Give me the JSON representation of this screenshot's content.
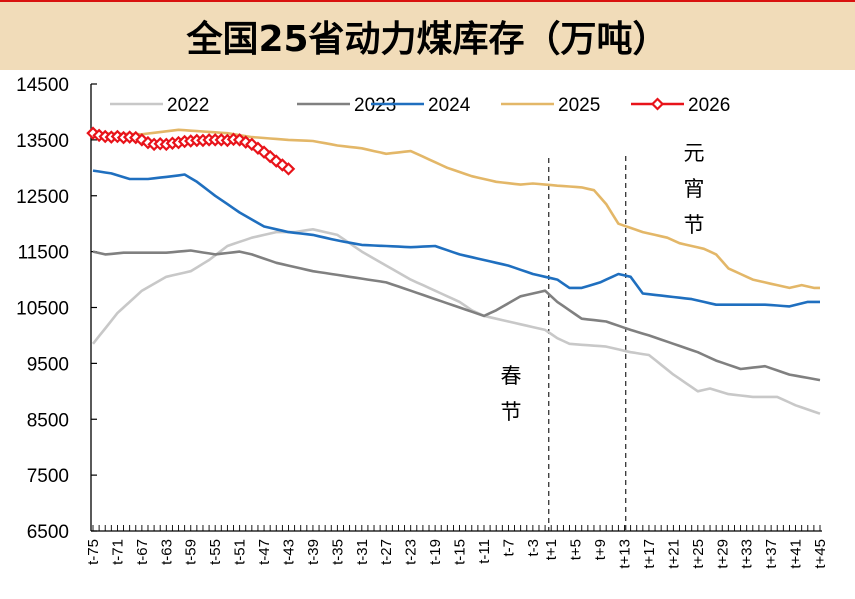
{
  "title": "全国25省动力煤库存（万吨）",
  "chart_data": {
    "type": "line",
    "title": "全国25省动力煤库存（万吨）",
    "xlabel": "",
    "ylabel": "",
    "ylim": [
      6500,
      14500
    ],
    "yticks": [
      14500,
      13500,
      12500,
      11500,
      10500,
      9500,
      8500,
      7500,
      6500
    ],
    "x": [
      "t-75",
      "t-74",
      "t-73",
      "t-72",
      "t-71",
      "t-70",
      "t-69",
      "t-68",
      "t-67",
      "t-66",
      "t-65",
      "t-64",
      "t-63",
      "t-62",
      "t-61",
      "t-60",
      "t-59",
      "t-58",
      "t-57",
      "t-56",
      "t-55",
      "t-54",
      "t-53",
      "t-52",
      "t-51",
      "t-50",
      "t-49",
      "t-48",
      "t-47",
      "t-46",
      "t-45",
      "t-44",
      "t-43",
      "t-42",
      "t-41",
      "t-40",
      "t-39",
      "t-38",
      "t-37",
      "t-36",
      "t-35",
      "t-34",
      "t-33",
      "t-32",
      "t-31",
      "t-30",
      "t-29",
      "t-28",
      "t-27",
      "t-26",
      "t-25",
      "t-24",
      "t-23",
      "t-22",
      "t-21",
      "t-20",
      "t-19",
      "t-18",
      "t-17",
      "t-16",
      "t-15",
      "t-14",
      "t-13",
      "t-12",
      "t-11",
      "t-10",
      "t-9",
      "t-8",
      "t-7",
      "t-6",
      "t-5",
      "t-4",
      "t-3",
      "t-2",
      "t-1",
      "t+1",
      "t+2",
      "t+3",
      "t+4",
      "t+5",
      "t+6",
      "t+7",
      "t+8",
      "t+9",
      "t+10",
      "t+11",
      "t+12",
      "t+13",
      "t+14",
      "t+15",
      "t+16",
      "t+17",
      "t+18",
      "t+19",
      "t+20",
      "t+21",
      "t+22",
      "t+23",
      "t+24",
      "t+25",
      "t+26",
      "t+27",
      "t+28",
      "t+29",
      "t+30",
      "t+31",
      "t+32",
      "t+33",
      "t+34",
      "t+35",
      "t+36",
      "t+37",
      "t+38",
      "t+39",
      "t+40",
      "t+41",
      "t+42",
      "t+43",
      "t+44",
      "t+45"
    ],
    "xtick_labels": [
      "t-75",
      "t-71",
      "t-67",
      "t-63",
      "t-59",
      "t-55",
      "t-51",
      "t-47",
      "t-43",
      "t-39",
      "t-35",
      "t-31",
      "t-27",
      "t-23",
      "t-19",
      "t-15",
      "t-11",
      "t-7",
      "t-3",
      "t+1",
      "t+5",
      "t+9",
      "t+13",
      "t+17",
      "t+21",
      "t+25",
      "t+29",
      "t+33",
      "t+37",
      "t+41",
      "t+45"
    ],
    "legend": {
      "placement": "top",
      "entries": [
        "2022",
        "2023",
        "2024",
        "2025",
        "2026"
      ]
    },
    "grid": false,
    "series": [
      {
        "name": "2022",
        "color": "#c8c8c8",
        "marker": "none",
        "keypoints": [
          [
            0,
            9850
          ],
          [
            4,
            10400
          ],
          [
            8,
            10800
          ],
          [
            12,
            11050
          ],
          [
            16,
            11150
          ],
          [
            19,
            11350
          ],
          [
            22,
            11600
          ],
          [
            26,
            11750
          ],
          [
            30,
            11850
          ],
          [
            33,
            11850
          ],
          [
            36,
            11900
          ],
          [
            38,
            11850
          ],
          [
            40,
            11800
          ],
          [
            44,
            11500
          ],
          [
            48,
            11250
          ],
          [
            52,
            11000
          ],
          [
            56,
            10800
          ],
          [
            60,
            10600
          ],
          [
            62,
            10450
          ],
          [
            64,
            10350
          ],
          [
            66,
            10300
          ],
          [
            70,
            10200
          ],
          [
            74,
            10100
          ],
          [
            76,
            9950
          ],
          [
            78,
            9850
          ],
          [
            84,
            9800
          ],
          [
            88,
            9700
          ],
          [
            91,
            9650
          ],
          [
            95,
            9300
          ],
          [
            99,
            9000
          ],
          [
            101,
            9050
          ],
          [
            104,
            8950
          ],
          [
            108,
            8900
          ],
          [
            112,
            8900
          ],
          [
            115,
            8750
          ],
          [
            119,
            8600
          ]
        ]
      },
      {
        "name": "2023",
        "color": "#808080",
        "marker": "none",
        "keypoints": [
          [
            0,
            11500
          ],
          [
            2,
            11450
          ],
          [
            5,
            11480
          ],
          [
            12,
            11480
          ],
          [
            16,
            11520
          ],
          [
            20,
            11450
          ],
          [
            24,
            11500
          ],
          [
            26,
            11450
          ],
          [
            30,
            11300
          ],
          [
            36,
            11150
          ],
          [
            42,
            11050
          ],
          [
            48,
            10950
          ],
          [
            52,
            10800
          ],
          [
            56,
            10650
          ],
          [
            60,
            10500
          ],
          [
            64,
            10350
          ],
          [
            66,
            10450
          ],
          [
            70,
            10700
          ],
          [
            74,
            10800
          ],
          [
            76,
            10600
          ],
          [
            80,
            10300
          ],
          [
            84,
            10250
          ],
          [
            88,
            10100
          ],
          [
            91,
            10000
          ],
          [
            95,
            9850
          ],
          [
            99,
            9700
          ],
          [
            102,
            9550
          ],
          [
            106,
            9400
          ],
          [
            110,
            9450
          ],
          [
            114,
            9300
          ],
          [
            119,
            9200
          ]
        ]
      },
      {
        "name": "2024",
        "color": "#1f6fbf",
        "marker": "none",
        "keypoints": [
          [
            0,
            12950
          ],
          [
            3,
            12900
          ],
          [
            6,
            12800
          ],
          [
            9,
            12800
          ],
          [
            13,
            12850
          ],
          [
            15,
            12880
          ],
          [
            17,
            12750
          ],
          [
            20,
            12500
          ],
          [
            24,
            12200
          ],
          [
            28,
            11950
          ],
          [
            32,
            11850
          ],
          [
            36,
            11800
          ],
          [
            40,
            11700
          ],
          [
            44,
            11620
          ],
          [
            48,
            11600
          ],
          [
            52,
            11580
          ],
          [
            56,
            11600
          ],
          [
            60,
            11450
          ],
          [
            64,
            11350
          ],
          [
            68,
            11250
          ],
          [
            72,
            11100
          ],
          [
            76,
            11000
          ],
          [
            78,
            10850
          ],
          [
            80,
            10850
          ],
          [
            83,
            10950
          ],
          [
            86,
            11100
          ],
          [
            88,
            11050
          ],
          [
            90,
            10750
          ],
          [
            94,
            10700
          ],
          [
            98,
            10650
          ],
          [
            102,
            10550
          ],
          [
            106,
            10550
          ],
          [
            110,
            10550
          ],
          [
            114,
            10520
          ],
          [
            117,
            10600
          ],
          [
            119,
            10600
          ]
        ]
      },
      {
        "name": "2025",
        "color": "#e3b768",
        "marker": "none",
        "keypoints": [
          [
            0,
            13620
          ],
          [
            8,
            13600
          ],
          [
            14,
            13680
          ],
          [
            18,
            13650
          ],
          [
            22,
            13620
          ],
          [
            26,
            13550
          ],
          [
            32,
            13500
          ],
          [
            36,
            13480
          ],
          [
            40,
            13400
          ],
          [
            44,
            13350
          ],
          [
            48,
            13250
          ],
          [
            52,
            13300
          ],
          [
            54,
            13200
          ],
          [
            58,
            13000
          ],
          [
            62,
            12850
          ],
          [
            66,
            12750
          ],
          [
            70,
            12700
          ],
          [
            72,
            12720
          ],
          [
            76,
            12680
          ],
          [
            80,
            12650
          ],
          [
            82,
            12600
          ],
          [
            84,
            12350
          ],
          [
            86,
            12000
          ],
          [
            90,
            11850
          ],
          [
            94,
            11750
          ],
          [
            96,
            11650
          ],
          [
            100,
            11550
          ],
          [
            102,
            11450
          ],
          [
            104,
            11200
          ],
          [
            108,
            11000
          ],
          [
            112,
            10900
          ],
          [
            114,
            10850
          ],
          [
            116,
            10900
          ],
          [
            118,
            10850
          ],
          [
            119,
            10850
          ]
        ]
      },
      {
        "name": "2026",
        "color": "#e8131a",
        "marker": "diamond-open",
        "values": [
          13620,
          13580,
          13560,
          13550,
          13560,
          13540,
          13550,
          13540,
          13500,
          13450,
          13420,
          13430,
          13420,
          13440,
          13450,
          13470,
          13480,
          13490,
          13490,
          13500,
          13500,
          13500,
          13490,
          13510,
          13500,
          13460,
          13420,
          13350,
          13280,
          13200,
          13120,
          13050,
          12980
        ]
      }
    ],
    "annotations": [
      {
        "text": "春节",
        "at": "t+1",
        "type": "vertical-dashed-line"
      },
      {
        "text": "元宵节",
        "at": "t+15",
        "type": "vertical-dashed-line"
      }
    ]
  }
}
